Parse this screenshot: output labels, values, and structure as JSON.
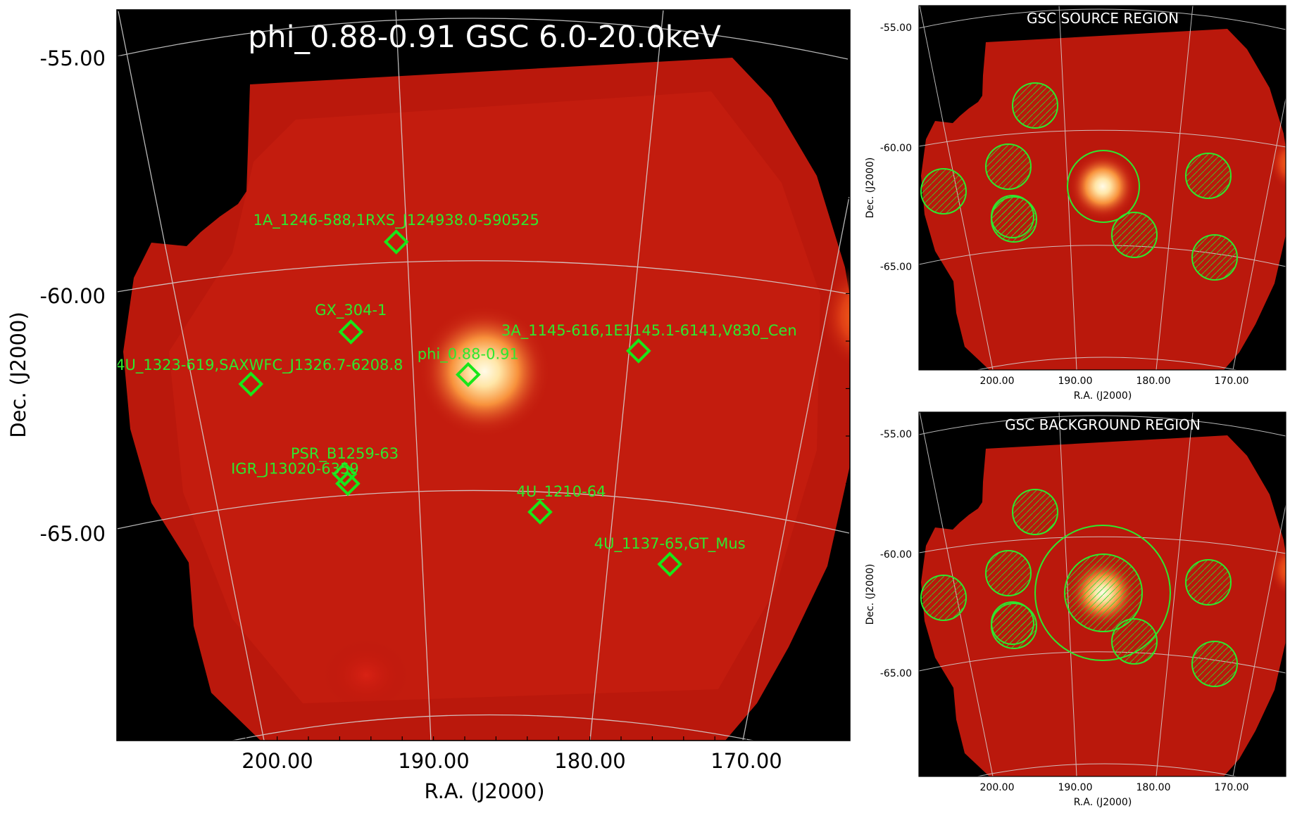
{
  "main_panel": {
    "title": "phi_0.88-0.91 GSC 6.0-20.0keV",
    "xlabel": "R.A. (J2000)",
    "ylabel": "Dec. (J2000)",
    "x_ticks": [
      "200.00",
      "190.00",
      "180.00",
      "170.00"
    ],
    "y_ticks": [
      "-55.00",
      "-60.00",
      "-65.00"
    ],
    "sources": [
      {
        "label": "1A_1246-588,1RXS_J124938.0-590525",
        "ra": 192.4,
        "dec": -58.9
      },
      {
        "label": "GX_304-1",
        "ra": 195.3,
        "dec": -60.8
      },
      {
        "label": "4U_1323-619,SAXWFC_J1326.7-6208.8",
        "ra": 201.7,
        "dec": -61.9
      },
      {
        "label": "phi_0.88-0.91",
        "ra": 187.8,
        "dec": -61.7
      },
      {
        "label": "3A_1145-616,1E1145.1-6141,V830_Cen",
        "ra": 176.9,
        "dec": -61.2
      },
      {
        "label": "PSR_B1259-63",
        "ra": 195.7,
        "dec": -63.8
      },
      {
        "label": "IGR_J13020-6359",
        "ra": 195.5,
        "dec": -64.0
      },
      {
        "label": "4U_1210-64",
        "ra": 183.2,
        "dec": -64.6
      },
      {
        "label": "4U_1137-65,GT_Mus",
        "ra": 174.9,
        "dec": -65.7
      }
    ],
    "colors": {
      "marker": "#19e619",
      "label": "#2ee82e",
      "grid": "#d8d8d8",
      "title": "#ffffff"
    }
  },
  "source_panel": {
    "title": "GSC SOURCE REGION",
    "xlabel": "R.A. (J2000)",
    "ylabel": "Dec. (J2000)",
    "x_ticks": [
      "200.00",
      "190.00",
      "180.00",
      "170.00"
    ],
    "y_ticks": [
      "-55.00",
      "-60.00",
      "-65.00"
    ]
  },
  "background_panel": {
    "title": "GSC BACKGROUND REGION",
    "xlabel": "R.A. (J2000)",
    "ylabel": "Dec. (J2000)",
    "x_ticks": [
      "200.00",
      "190.00",
      "180.00",
      "170.00"
    ],
    "y_ticks": [
      "-55.00",
      "-60.00",
      "-65.00"
    ]
  }
}
